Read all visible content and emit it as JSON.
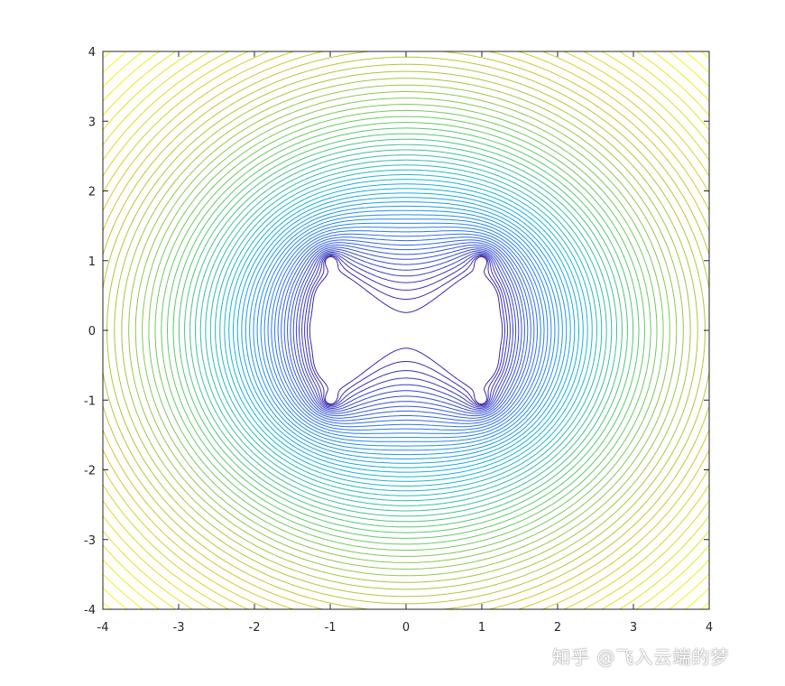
{
  "chart_data": {
    "type": "contour",
    "title": "",
    "xlabel": "",
    "ylabel": "",
    "xlim": [
      -4,
      4
    ],
    "ylim": [
      -4,
      4
    ],
    "xticks": [
      -4,
      -3,
      -2,
      -1,
      0,
      1,
      2,
      3,
      4
    ],
    "yticks": [
      -4,
      -3,
      -2,
      -1,
      0,
      1,
      2,
      3,
      4
    ],
    "xtick_labels": [
      "-4",
      "-3",
      "-2",
      "-1",
      "0",
      "1",
      "2",
      "3",
      "4"
    ],
    "ytick_labels": [
      "-4",
      "-3",
      "-2",
      "-1",
      "0",
      "1",
      "2",
      "3",
      "4"
    ],
    "grid": false,
    "colormap": [
      "#3e26a8",
      "#2f6ff5",
      "#14b1d8",
      "#5dc96a",
      "#c9c32e",
      "#f9fb15"
    ],
    "sources": {
      "x": [
        -1,
        1
      ],
      "y": [
        -1,
        -0.5,
        0,
        0.5,
        1
      ]
    },
    "contour_levels": 60
  },
  "watermark": "知乎 @飞入云端的梦"
}
